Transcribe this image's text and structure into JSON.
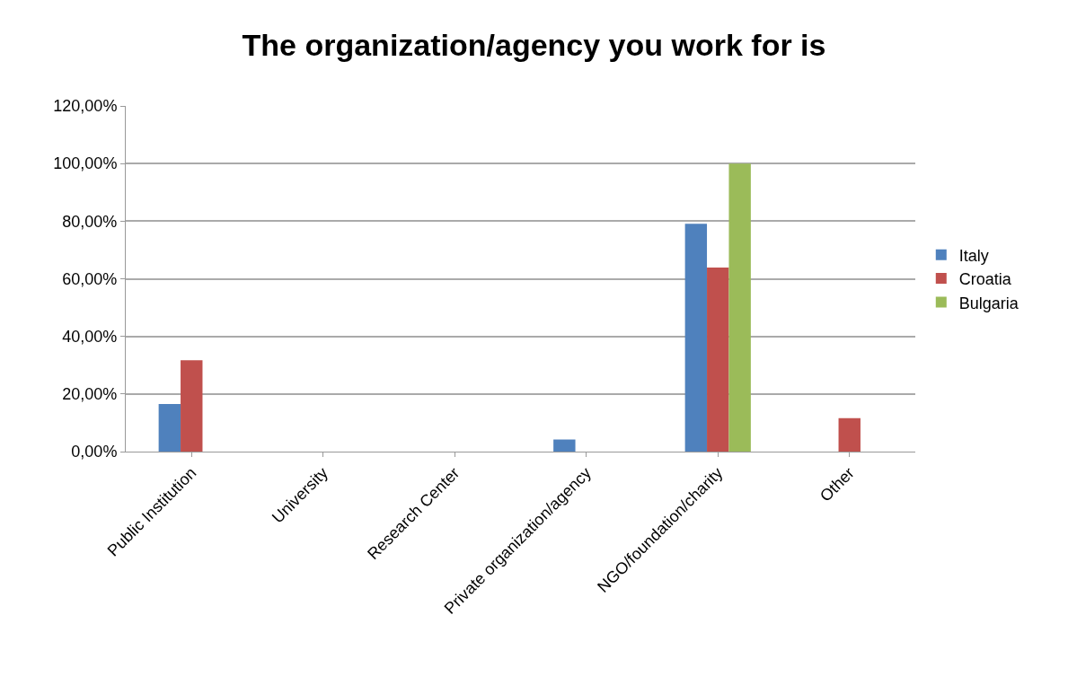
{
  "chart_data": {
    "type": "bar",
    "title": "The organization/agency you work for is",
    "categories": [
      "Public Institution",
      "University",
      "Research Center",
      "Private organization/agency",
      "NGO/foundation/charity",
      "Other"
    ],
    "series": [
      {
        "name": "Italy",
        "color": "#4f81bd",
        "values": [
          16.5,
          0,
          0,
          4.2,
          79.1,
          0
        ]
      },
      {
        "name": "Croatia",
        "color": "#c0504d",
        "values": [
          31.7,
          0,
          0,
          0,
          63.9,
          11.6
        ]
      },
      {
        "name": "Bulgaria",
        "color": "#9bbb59",
        "values": [
          0,
          0,
          0,
          0,
          100,
          0
        ]
      }
    ],
    "ylim": [
      0,
      120
    ],
    "yticks": [
      {
        "value": 0,
        "label": "0,00%"
      },
      {
        "value": 20,
        "label": "20,00%"
      },
      {
        "value": 40,
        "label": "40,00%"
      },
      {
        "value": 60,
        "label": "60,00%"
      },
      {
        "value": 80,
        "label": "80,00%"
      },
      {
        "value": 100,
        "label": "100,00%"
      },
      {
        "value": 120,
        "label": "120,00%"
      }
    ],
    "grid": "y",
    "legend": "right"
  }
}
